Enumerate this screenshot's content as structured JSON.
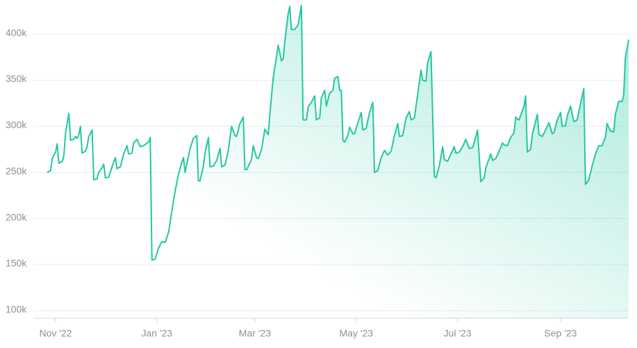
{
  "chart_data": {
    "type": "line",
    "color": "#22c7a2",
    "grid": true,
    "area": true,
    "xlim": [
      -5,
      345
    ],
    "ylim": [
      92000,
      437000
    ],
    "xticks": [
      {
        "value": 0,
        "label": "Nov '22"
      },
      {
        "value": 61,
        "label": "Jan '23"
      },
      {
        "value": 120,
        "label": "Mar '23"
      },
      {
        "value": 181,
        "label": "May '23"
      },
      {
        "value": 242,
        "label": "Jul '23"
      },
      {
        "value": 304,
        "label": "Sep '23"
      }
    ],
    "yticks": [
      {
        "value": 100000,
        "label": "100k"
      },
      {
        "value": 150000,
        "label": "150k"
      },
      {
        "value": 200000,
        "label": "200k"
      },
      {
        "value": 250000,
        "label": "250k"
      },
      {
        "value": 300000,
        "label": "300k"
      },
      {
        "value": 350000,
        "label": "350k"
      },
      {
        "value": 400000,
        "label": "400k"
      }
    ],
    "x": [
      -5,
      -3,
      -2,
      0,
      1,
      2,
      4,
      5,
      6,
      8,
      9,
      11,
      12,
      13,
      14,
      15,
      16,
      18,
      19,
      20,
      22,
      23,
      25,
      26,
      28,
      29,
      30,
      32,
      34,
      36,
      37,
      39,
      41,
      43,
      44,
      46,
      47,
      49,
      51,
      53,
      56,
      57,
      58,
      60,
      62,
      64,
      66,
      68,
      70,
      72,
      74,
      76,
      77,
      78,
      79,
      81,
      83,
      85,
      86,
      87,
      89,
      90,
      92,
      93,
      95,
      97,
      99,
      100,
      102,
      104,
      106,
      108,
      109,
      111,
      113,
      114,
      115,
      118,
      119,
      121,
      122,
      124,
      126,
      128,
      129,
      131,
      133,
      134,
      136,
      137,
      138,
      140,
      141,
      142,
      144,
      146,
      148,
      149,
      151,
      152,
      154,
      156,
      157,
      159,
      160,
      162,
      163,
      165,
      167,
      168,
      170,
      171,
      172,
      173,
      174,
      176,
      177,
      179,
      180,
      182,
      184,
      185,
      187,
      189,
      191,
      192,
      194,
      196,
      198,
      200,
      202,
      204,
      206,
      207,
      209,
      211,
      213,
      214,
      216,
      218,
      220,
      221,
      223,
      224,
      226,
      228,
      229,
      231,
      233,
      234,
      236,
      238,
      240,
      241,
      243,
      245,
      247,
      249,
      251,
      252,
      254,
      256,
      258,
      259,
      262,
      263,
      265,
      267,
      269,
      270,
      272,
      274,
      276,
      277,
      278,
      279,
      282,
      283,
      284,
      286,
      287,
      290,
      291,
      293,
      295,
      297,
      299,
      300,
      302,
      304,
      305,
      307,
      308,
      310,
      312,
      314,
      315,
      318,
      319,
      321,
      323,
      325,
      327,
      329,
      331,
      332,
      334,
      336,
      337,
      339,
      341,
      342,
      343,
      345
    ],
    "values": [
      250000,
      252000,
      265000,
      272000,
      281000,
      260000,
      262000,
      268000,
      292000,
      314000,
      285000,
      286000,
      289000,
      287000,
      291000,
      300000,
      271000,
      273000,
      278000,
      289000,
      296000,
      242000,
      243000,
      250000,
      255000,
      259000,
      244000,
      245000,
      256000,
      266000,
      254000,
      256000,
      270000,
      279000,
      270000,
      271000,
      282000,
      286000,
      278000,
      279000,
      283000,
      288000,
      155000,
      156000,
      168000,
      175000,
      174000,
      185000,
      208000,
      230000,
      248000,
      261000,
      266000,
      250000,
      259000,
      276000,
      287000,
      290000,
      241000,
      241000,
      257000,
      271000,
      288000,
      256000,
      257000,
      263000,
      276000,
      256000,
      258000,
      274000,
      300000,
      290000,
      289000,
      303000,
      310000,
      253000,
      253000,
      264000,
      279000,
      266000,
      265000,
      275000,
      297000,
      291000,
      313000,
      352000,
      375000,
      388000,
      371000,
      373000,
      392000,
      422000,
      430000,
      405000,
      405000,
      410000,
      431000,
      307000,
      307000,
      321000,
      326000,
      333000,
      307000,
      309000,
      331000,
      339000,
      322000,
      336000,
      339000,
      352000,
      354000,
      339000,
      339000,
      285000,
      283000,
      290000,
      299000,
      292000,
      292000,
      304000,
      315000,
      296000,
      298000,
      315000,
      326000,
      250000,
      252000,
      266000,
      274000,
      269000,
      273000,
      290000,
      303000,
      289000,
      290000,
      309000,
      316000,
      307000,
      309000,
      335000,
      361000,
      350000,
      349000,
      369000,
      381000,
      246000,
      244000,
      257000,
      278000,
      264000,
      262000,
      270000,
      278000,
      271000,
      272000,
      278000,
      286000,
      276000,
      277000,
      282000,
      296000,
      240000,
      244000,
      255000,
      270000,
      263000,
      265000,
      273000,
      282000,
      280000,
      279000,
      288000,
      293000,
      310000,
      308000,
      307000,
      322000,
      333000,
      272000,
      275000,
      291000,
      313000,
      291000,
      289000,
      296000,
      304000,
      292000,
      293000,
      307000,
      315000,
      300000,
      301000,
      311000,
      322000,
      305000,
      307000,
      316000,
      341000,
      237000,
      242000,
      257000,
      270000,
      279000,
      279000,
      288000,
      303000,
      295000,
      294000,
      313000,
      327000,
      327000,
      333000,
      374000,
      394000
    ]
  }
}
